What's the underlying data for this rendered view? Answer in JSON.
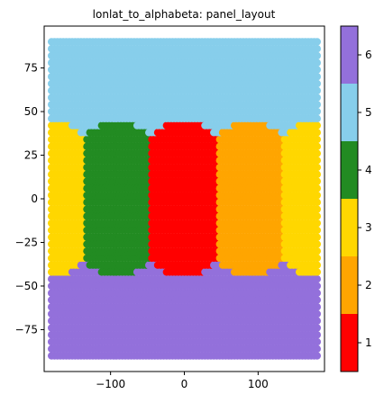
{
  "chart_data": {
    "type": "scatter",
    "title": "lonlat_to_alphabeta: panel_layout",
    "xlabel": "",
    "ylabel": "",
    "xlim": [
      -190,
      190
    ],
    "ylim": [
      -99,
      99
    ],
    "grid": false,
    "x_ticks": [
      -100,
      0,
      100
    ],
    "x_tick_labels": [
      "−100",
      "0",
      "100"
    ],
    "y_ticks": [
      -75,
      -50,
      -25,
      0,
      25,
      50,
      75
    ],
    "y_tick_labels": [
      "−75",
      "−50",
      "−25",
      "0",
      "25",
      "50",
      "75"
    ],
    "grid_spacing_deg": 4,
    "lon_range": [
      -180,
      180
    ],
    "lat_range": [
      -90,
      90
    ],
    "color_value_rule": "panel id 1-4 = equatorial faces split by longitude, 5 = north polar cap, 6 = south polar cap",
    "panels": [
      {
        "id": 1,
        "color": "#ff0000",
        "center_lon": 0
      },
      {
        "id": 2,
        "color": "#ffa500",
        "center_lon": 90
      },
      {
        "id": 3,
        "color": "#ffd700",
        "center_lon": 180
      },
      {
        "id": 4,
        "color": "#228b22",
        "center_lon": -90
      },
      {
        "id": 5,
        "color": "#87ceeb",
        "center_lon": null
      },
      {
        "id": 6,
        "color": "#9370db",
        "center_lon": null
      }
    ],
    "colorbar": {
      "ticks": [
        1,
        2,
        3,
        4,
        5,
        6
      ],
      "tick_labels": [
        "1",
        "2",
        "3",
        "4",
        "5",
        "6"
      ],
      "range": [
        0.5,
        6.5
      ],
      "colors": [
        "#ff0000",
        "#ffa500",
        "#ffd700",
        "#228b22",
        "#87ceeb",
        "#9370db"
      ]
    }
  }
}
